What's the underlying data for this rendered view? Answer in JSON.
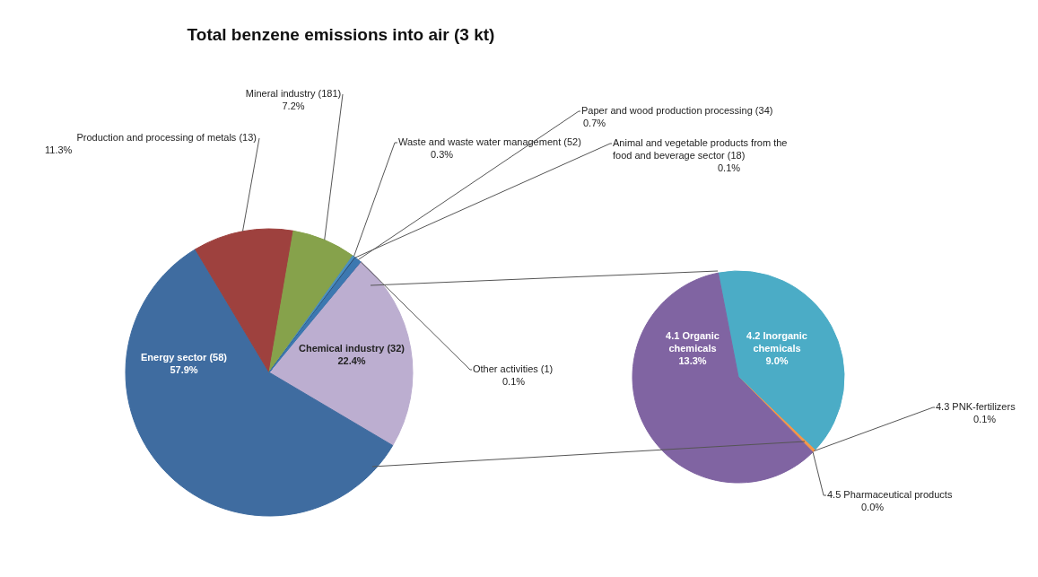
{
  "chart_data": [
    {
      "type": "pie",
      "title": "Total benzene emissions into air (3 kt)",
      "categories": [
        "Other activities (1)",
        "Chemical industry (32)",
        "Energy sector (58)",
        "Production and processing of metals (13)",
        "Mineral industry (181)",
        "Waste and waste water management (52)",
        "Animal and vegetable products from the food and beverage sector (18)",
        "Paper and wood production processing (34)"
      ],
      "values": [
        0.1,
        22.4,
        57.9,
        11.3,
        7.2,
        0.3,
        0.1,
        0.7
      ],
      "colors": [
        "#6f5590",
        "#bcaed0",
        "#3f6ca0",
        "#9e413e",
        "#86a24b",
        "#4a8fc0",
        "#2c4d75",
        "#3c78b0"
      ],
      "value_labels": [
        "0.1%",
        "22.4%",
        "57.9%",
        "11.3%",
        "7.2%",
        "0.3%",
        "0.1%",
        "0.7%"
      ]
    },
    {
      "type": "pie",
      "categories": [
        "4.2 Inorganic chemicals",
        "4.3 PNK-fertilizers",
        "4.5 Pharmaceutical products",
        "4.1 Organic chemicals"
      ],
      "values": [
        9.0,
        0.1,
        0.0,
        13.3
      ],
      "colors": [
        "#4bacc6",
        "#f79646",
        "#c0504d",
        "#8064a2"
      ],
      "value_labels": [
        "9.0%",
        "0.1%",
        "0.0%",
        "13.3%"
      ]
    }
  ]
}
